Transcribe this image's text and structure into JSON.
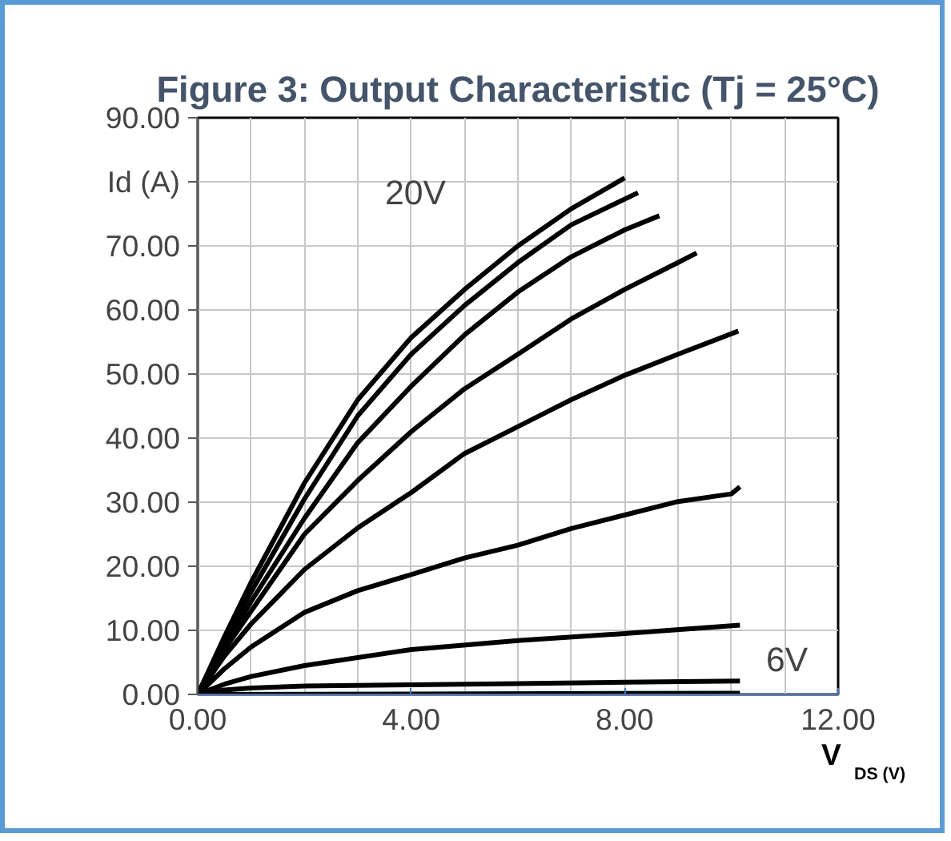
{
  "chart_data": {
    "type": "line",
    "title": "Figure 3: Output Characteristic (Tj = 25°C)",
    "xlabel": "V$_{DS (V)}$",
    "ylabel": "Id (A)",
    "xlim": [
      0,
      12
    ],
    "ylim": [
      0,
      90
    ],
    "xticks": [
      {
        "value": 0,
        "label": "0.00"
      },
      {
        "value": 4,
        "label": "4.00"
      },
      {
        "value": 8,
        "label": "8.00"
      },
      {
        "value": 12,
        "label": "12.00"
      }
    ],
    "yticks": [
      {
        "value": 0,
        "label": "0.00"
      },
      {
        "value": 10,
        "label": "10.00"
      },
      {
        "value": 20,
        "label": "20.00"
      },
      {
        "value": 30,
        "label": "30.00"
      },
      {
        "value": 40,
        "label": "40.00"
      },
      {
        "value": 50,
        "label": "50.00"
      },
      {
        "value": 60,
        "label": "60.00"
      },
      {
        "value": 70,
        "label": "70.00"
      },
      {
        "value": 80,
        "label": null
      },
      {
        "value": 90,
        "label": "90.00"
      }
    ],
    "grid": true,
    "marker": "none",
    "line_style": "solid",
    "series": [
      {
        "color": "#000000",
        "x": [
          0,
          0.5,
          1,
          2,
          3,
          4,
          5,
          6,
          7,
          8
        ],
        "values": [
          0,
          9,
          17.5,
          33,
          46,
          55.7,
          63.2,
          70,
          75.8,
          80.6
        ]
      },
      {
        "color": "#000000",
        "x": [
          0,
          0.5,
          1,
          2,
          3,
          4,
          5,
          6,
          7,
          8.25
        ],
        "values": [
          0,
          8.5,
          16,
          30.5,
          43.5,
          53.1,
          60.7,
          67.4,
          73.3,
          78.3
        ]
      },
      {
        "color": "#000000",
        "x": [
          0,
          0.5,
          1,
          2,
          3,
          4,
          5,
          6,
          7,
          8,
          8.65
        ],
        "values": [
          0,
          7.5,
          14.5,
          27.5,
          39.3,
          48.1,
          56.1,
          62.8,
          68.3,
          72.5,
          74.7
        ]
      },
      {
        "color": "#000000",
        "x": [
          0,
          0.5,
          1,
          2,
          3,
          4,
          5,
          6,
          7,
          8,
          9,
          9.35
        ],
        "values": [
          0,
          7,
          13,
          25,
          33.4,
          41,
          47.7,
          53.1,
          58.6,
          63.2,
          67.4,
          68.9
        ]
      },
      {
        "color": "#000000",
        "x": [
          0,
          0.5,
          1,
          2,
          3,
          4,
          5,
          6,
          7,
          8,
          9,
          10.13
        ],
        "values": [
          0,
          6,
          11,
          19.5,
          26,
          31.5,
          37.6,
          41.8,
          46,
          49.8,
          53.1,
          56.7
        ]
      },
      {
        "color": "#000000",
        "x": [
          0,
          0.5,
          1,
          2,
          3,
          4,
          5,
          6,
          7,
          8,
          9,
          10,
          10.16
        ],
        "values": [
          0,
          4,
          7.4,
          12.8,
          16.2,
          18.7,
          21.3,
          23.3,
          25.9,
          28,
          30.1,
          31.3,
          32.4
        ]
      },
      {
        "color": "#000000",
        "x": [
          0,
          0.5,
          1,
          2,
          4,
          6,
          8,
          10.16
        ],
        "values": [
          0,
          1.6,
          2.8,
          4.5,
          7,
          8.4,
          9.5,
          10.8
        ]
      },
      {
        "color": "#000000",
        "x": [
          0,
          0.5,
          1,
          2,
          4,
          6,
          8,
          10.16
        ],
        "values": [
          0,
          0.7,
          1,
          1.3,
          1.5,
          1.7,
          1.9,
          2.1
        ]
      },
      {
        "color": "#000000",
        "x": [
          0,
          10.16
        ],
        "values": [
          0,
          0.2
        ]
      }
    ],
    "annotations": [
      "20V",
      "6V"
    ]
  }
}
